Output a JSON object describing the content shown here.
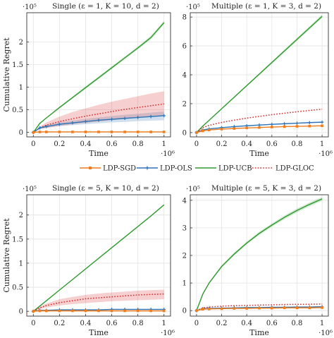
{
  "colors": {
    "LDP-SGD": "#f07c1c",
    "LDP-OLS": "#2b74b8",
    "LDP-UCB": "#2e9a2e",
    "LDP-GLOC": "#d62728",
    "grid": "#e3e3e3",
    "axis": "#333333"
  },
  "legend": {
    "placement": "center-between-rows",
    "entries": [
      "LDP-SGD",
      "LDP-OLS",
      "LDP-UCB",
      "LDP-GLOC"
    ]
  },
  "chart_data": [
    {
      "type": "line",
      "title": "Single (ε = 1, K = 10, d = 2)",
      "xlabel": "Time",
      "ylabel": "Cumulative Regret",
      "x_multiplier": "·10⁶",
      "y_multiplier": "·10⁵",
      "xlim": [
        -0.05,
        1.05
      ],
      "ylim": [
        -0.1,
        2.65
      ],
      "xticks": [
        0,
        0.2,
        0.4,
        0.6,
        0.8,
        1
      ],
      "xtick_labels": [
        "0",
        "0.2",
        "0.4",
        "0.6",
        "0.8",
        "1"
      ],
      "yticks": [
        0,
        0.5,
        1,
        1.5,
        2
      ],
      "ytick_labels": [
        "0",
        "0.5",
        "1",
        "1.5",
        "2"
      ],
      "grid": true,
      "x": [
        0,
        0.05,
        0.1,
        0.2,
        0.3,
        0.4,
        0.5,
        0.6,
        0.7,
        0.8,
        0.9,
        1.0
      ],
      "series": [
        {
          "name": "LDP-SGD",
          "style": "solid-marker",
          "values": [
            0,
            0.01,
            0.01,
            0.01,
            0.01,
            0.01,
            0.01,
            0.01,
            0.01,
            0.01,
            0.01,
            0.01
          ],
          "lower": null,
          "upper": null
        },
        {
          "name": "LDP-OLS",
          "style": "solid-marker",
          "values": [
            0,
            0.1,
            0.13,
            0.18,
            0.21,
            0.24,
            0.27,
            0.29,
            0.31,
            0.33,
            0.35,
            0.37
          ],
          "lower": [
            0,
            0.08,
            0.1,
            0.14,
            0.16,
            0.18,
            0.2,
            0.22,
            0.23,
            0.25,
            0.26,
            0.27
          ],
          "upper": [
            0,
            0.12,
            0.16,
            0.22,
            0.26,
            0.3,
            0.33,
            0.36,
            0.39,
            0.41,
            0.44,
            0.46
          ]
        },
        {
          "name": "LDP-UCB",
          "style": "solid",
          "values": [
            0,
            0.2,
            0.32,
            0.55,
            0.77,
            0.99,
            1.21,
            1.43,
            1.65,
            1.87,
            2.1,
            2.43
          ],
          "lower": [
            0,
            0.19,
            0.31,
            0.53,
            0.75,
            0.96,
            1.18,
            1.4,
            1.62,
            1.84,
            2.06,
            2.39
          ],
          "upper": [
            0,
            0.21,
            0.33,
            0.57,
            0.79,
            1.02,
            1.24,
            1.46,
            1.68,
            1.9,
            2.14,
            2.47
          ]
        },
        {
          "name": "LDP-GLOC",
          "style": "dotted",
          "values": [
            0,
            0.1,
            0.16,
            0.24,
            0.3,
            0.36,
            0.41,
            0.46,
            0.51,
            0.55,
            0.59,
            0.63
          ],
          "lower": [
            0,
            0.07,
            0.1,
            0.14,
            0.18,
            0.21,
            0.24,
            0.27,
            0.3,
            0.33,
            0.35,
            0.38
          ],
          "upper": [
            0,
            0.13,
            0.22,
            0.35,
            0.45,
            0.53,
            0.61,
            0.68,
            0.74,
            0.8,
            0.86,
            0.91
          ]
        }
      ]
    },
    {
      "type": "line",
      "title": "Multiple (ε = 1, K = 3, d = 2)",
      "xlabel": "Time",
      "ylabel": "",
      "x_multiplier": "·10⁶",
      "y_multiplier": "·10⁵",
      "xlim": [
        -0.05,
        1.05
      ],
      "ylim": [
        -0.3,
        8.3
      ],
      "xticks": [
        0,
        0.2,
        0.4,
        0.6,
        0.8,
        1
      ],
      "xtick_labels": [
        "0",
        "0.2",
        "0.4",
        "0.6",
        "0.8",
        "1"
      ],
      "yticks": [
        0,
        2,
        4,
        6,
        8
      ],
      "ytick_labels": [
        "0",
        "2",
        "4",
        "6",
        "8"
      ],
      "grid": true,
      "x": [
        0,
        0.05,
        0.1,
        0.2,
        0.3,
        0.4,
        0.5,
        0.6,
        0.7,
        0.8,
        0.9,
        1.0
      ],
      "series": [
        {
          "name": "LDP-SGD",
          "style": "solid-marker",
          "values": [
            0,
            0.12,
            0.18,
            0.24,
            0.28,
            0.32,
            0.35,
            0.38,
            0.41,
            0.43,
            0.45,
            0.47
          ],
          "lower": null,
          "upper": null
        },
        {
          "name": "LDP-OLS",
          "style": "solid-marker",
          "values": [
            0,
            0.18,
            0.25,
            0.34,
            0.41,
            0.47,
            0.52,
            0.57,
            0.61,
            0.65,
            0.69,
            0.72
          ],
          "lower": null,
          "upper": null
        },
        {
          "name": "LDP-UCB",
          "style": "solid",
          "values": [
            0,
            0.45,
            0.85,
            1.65,
            2.45,
            3.25,
            4.05,
            4.85,
            5.65,
            6.45,
            7.25,
            8.05
          ],
          "lower": [
            0,
            0.43,
            0.82,
            1.61,
            2.4,
            3.19,
            3.98,
            4.77,
            5.56,
            6.35,
            7.14,
            7.93
          ],
          "upper": [
            0,
            0.47,
            0.88,
            1.69,
            2.5,
            3.31,
            4.12,
            4.93,
            5.74,
            6.55,
            7.36,
            8.17
          ]
        },
        {
          "name": "LDP-GLOC",
          "style": "dotted",
          "values": [
            0,
            0.35,
            0.5,
            0.7,
            0.86,
            1.0,
            1.12,
            1.24,
            1.34,
            1.44,
            1.53,
            1.62
          ],
          "lower": null,
          "upper": null
        }
      ]
    },
    {
      "type": "line",
      "title": "Single (ε = 5, K = 10, d = 2)",
      "xlabel": "Time",
      "ylabel": "Cumulative Regret",
      "x_multiplier": "·10⁶",
      "y_multiplier": "·10⁵",
      "xlim": [
        -0.05,
        1.05
      ],
      "ylim": [
        -0.1,
        2.42
      ],
      "xticks": [
        0,
        0.2,
        0.4,
        0.6,
        0.8,
        1
      ],
      "xtick_labels": [
        "0",
        "0.2",
        "0.4",
        "0.6",
        "0.8",
        "1"
      ],
      "yticks": [
        0,
        0.5,
        1,
        1.5,
        2
      ],
      "ytick_labels": [
        "0",
        "0.5",
        "1",
        "1.5",
        "2"
      ],
      "grid": true,
      "x": [
        0,
        0.05,
        0.1,
        0.2,
        0.3,
        0.4,
        0.5,
        0.6,
        0.7,
        0.8,
        0.9,
        1.0
      ],
      "series": [
        {
          "name": "LDP-SGD",
          "style": "solid-marker",
          "values": [
            0,
            0.01,
            0.01,
            0.01,
            0.01,
            0.01,
            0.01,
            0.01,
            0.01,
            0.01,
            0.01,
            0.01
          ],
          "lower": null,
          "upper": null
        },
        {
          "name": "LDP-OLS",
          "style": "solid-marker",
          "values": [
            0,
            0.02,
            0.02,
            0.03,
            0.03,
            0.03,
            0.03,
            0.04,
            0.04,
            0.04,
            0.04,
            0.04
          ],
          "lower": null,
          "upper": null
        },
        {
          "name": "LDP-UCB",
          "style": "solid",
          "values": [
            0,
            0.11,
            0.22,
            0.44,
            0.66,
            0.88,
            1.1,
            1.32,
            1.54,
            1.76,
            1.98,
            2.21
          ],
          "lower": null,
          "upper": null
        },
        {
          "name": "LDP-GLOC",
          "style": "dotted",
          "values": [
            0,
            0.07,
            0.12,
            0.18,
            0.22,
            0.26,
            0.28,
            0.3,
            0.32,
            0.34,
            0.35,
            0.36
          ],
          "lower": [
            0,
            0.05,
            0.08,
            0.12,
            0.15,
            0.17,
            0.19,
            0.21,
            0.22,
            0.23,
            0.24,
            0.25
          ],
          "upper": [
            0,
            0.1,
            0.16,
            0.25,
            0.3,
            0.34,
            0.37,
            0.39,
            0.41,
            0.43,
            0.44,
            0.45
          ]
        }
      ]
    },
    {
      "type": "line",
      "title": "Multiple (ε = 5, K = 3, d = 2)",
      "xlabel": "Time",
      "ylabel": "",
      "x_multiplier": "·10⁶",
      "y_multiplier": "·10⁵",
      "xlim": [
        -0.05,
        1.05
      ],
      "ylim": [
        -0.2,
        4.2
      ],
      "xticks": [
        0,
        0.2,
        0.4,
        0.6,
        0.8,
        1
      ],
      "xtick_labels": [
        "0",
        "0.2",
        "0.4",
        "0.6",
        "0.8",
        "1"
      ],
      "yticks": [
        0,
        1,
        2,
        3,
        4
      ],
      "ytick_labels": [
        "0",
        "1",
        "2",
        "3",
        "4"
      ],
      "grid": true,
      "x": [
        0,
        0.05,
        0.1,
        0.2,
        0.3,
        0.4,
        0.5,
        0.6,
        0.7,
        0.8,
        0.9,
        1.0
      ],
      "series": [
        {
          "name": "LDP-SGD",
          "style": "solid-marker",
          "values": [
            0,
            0.05,
            0.06,
            0.07,
            0.08,
            0.08,
            0.09,
            0.09,
            0.1,
            0.1,
            0.1,
            0.11
          ],
          "lower": null,
          "upper": null
        },
        {
          "name": "LDP-OLS",
          "style": "solid-marker",
          "values": [
            0,
            0.07,
            0.08,
            0.09,
            0.1,
            0.11,
            0.11,
            0.12,
            0.12,
            0.13,
            0.13,
            0.14
          ],
          "lower": null,
          "upper": null
        },
        {
          "name": "LDP-UCB",
          "style": "solid",
          "values": [
            0,
            0.6,
            1.0,
            1.6,
            2.05,
            2.45,
            2.8,
            3.1,
            3.38,
            3.63,
            3.85,
            4.05
          ],
          "lower": [
            0,
            0.58,
            0.97,
            1.56,
            2.0,
            2.4,
            2.74,
            3.04,
            3.31,
            3.56,
            3.78,
            3.98
          ],
          "upper": [
            0,
            0.62,
            1.03,
            1.64,
            2.1,
            2.5,
            2.86,
            3.16,
            3.45,
            3.7,
            3.92,
            4.12
          ]
        },
        {
          "name": "LDP-GLOC",
          "style": "dotted",
          "values": [
            0,
            0.1,
            0.13,
            0.16,
            0.18,
            0.19,
            0.2,
            0.21,
            0.22,
            0.23,
            0.23,
            0.24
          ],
          "lower": null,
          "upper": null
        }
      ]
    }
  ]
}
